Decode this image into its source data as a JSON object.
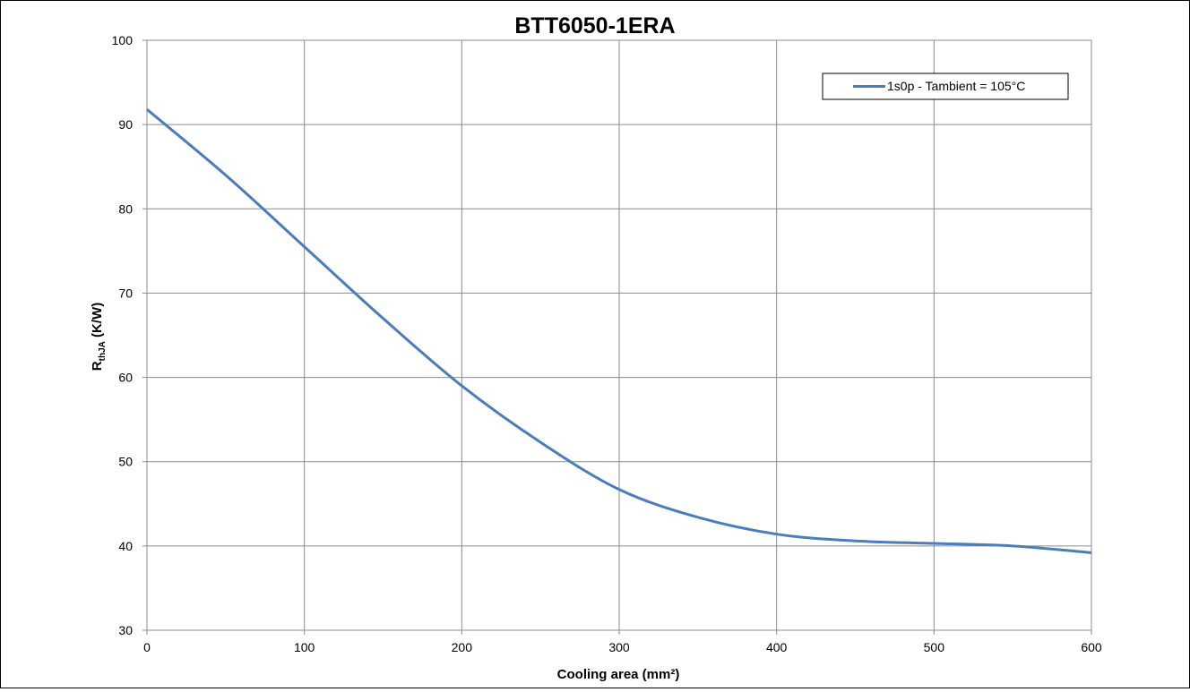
{
  "chart_data": {
    "type": "line",
    "title": "BTT6050-1ERA",
    "xlabel": "Cooling area (mm²)",
    "ylabel": {
      "main": "R",
      "subscript": "thJA",
      "suffix": " (K/W)"
    },
    "xlim": [
      0,
      600
    ],
    "ylim": [
      30,
      100
    ],
    "x_ticks": [
      0,
      100,
      200,
      300,
      400,
      500,
      600
    ],
    "y_ticks": [
      30,
      40,
      50,
      60,
      70,
      80,
      90,
      100
    ],
    "grid": true,
    "legend_position": "top-right",
    "series": [
      {
        "name": "1s0p - Tambient = 105°C",
        "color": "#4a7ebb",
        "x": [
          0,
          50,
          100,
          150,
          200,
          250,
          300,
          350,
          400,
          450,
          500,
          550,
          600
        ],
        "y": [
          91.8,
          84.0,
          75.5,
          67.0,
          59.0,
          52.3,
          46.7,
          43.4,
          41.4,
          40.6,
          40.3,
          40.0,
          39.2
        ]
      }
    ]
  }
}
